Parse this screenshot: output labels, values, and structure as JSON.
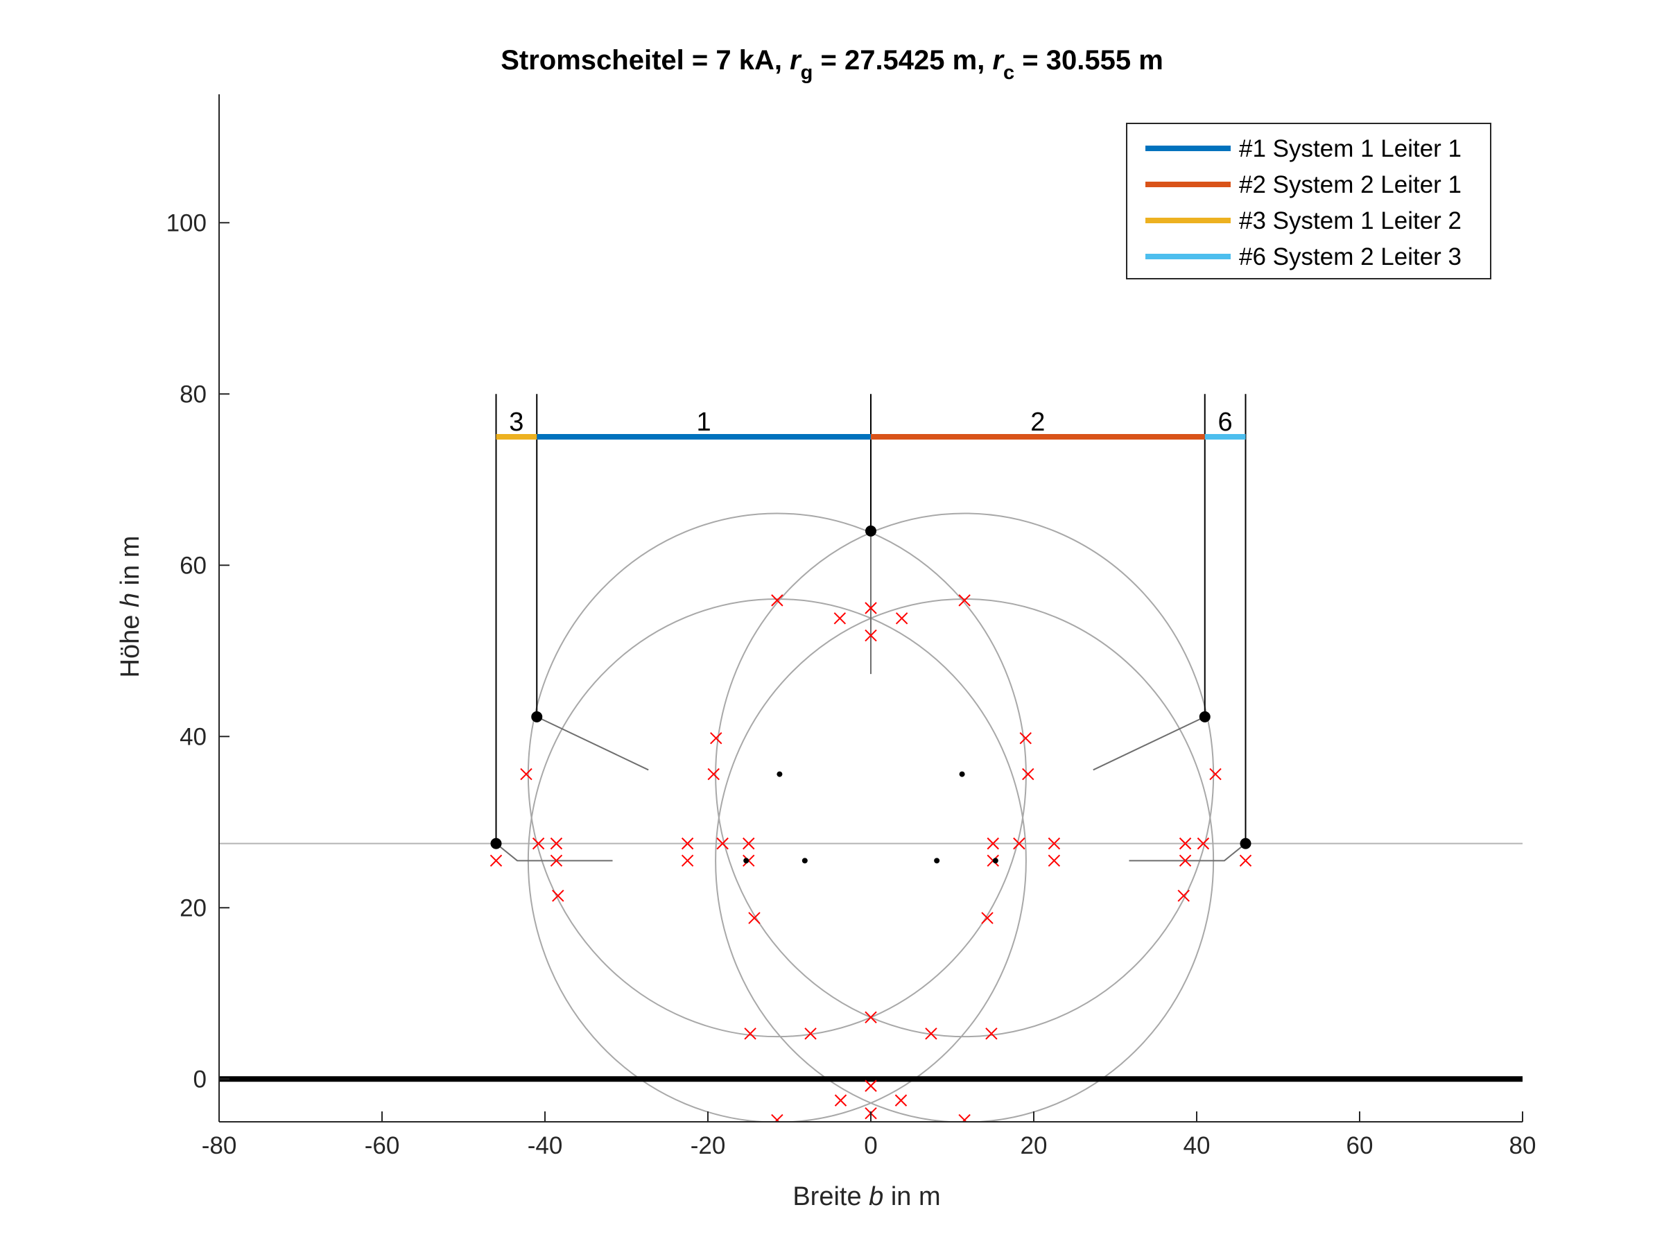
{
  "chart_data": {
    "type": "line",
    "title": {
      "prefix": "Stromscheitel = 7 kA, ",
      "rg_sym": "r",
      "rg_sub": "g",
      "rg_val": " = 27.5425 m, ",
      "rc_sym": "r",
      "rc_sub": "c",
      "rc_val": " = 30.555 m"
    },
    "xlabel": {
      "pre": "Breite ",
      "var": "b",
      "post": " in m"
    },
    "ylabel": {
      "pre": "Höhe ",
      "var": "h",
      "post": " in m"
    },
    "xlim": [
      -80,
      80
    ],
    "ylim": [
      -5,
      115
    ],
    "xticks": [
      "-80",
      "-60",
      "-40",
      "-20",
      "0",
      "20",
      "40",
      "60",
      "80"
    ],
    "yticks": [
      "0",
      "20",
      "40",
      "60",
      "80",
      "100"
    ],
    "legend_position": "top-right",
    "series": [
      {
        "name": "#1 System 1 Leiter 1",
        "color": "#0072BD",
        "label": "1",
        "x": [
          -41.0,
          0.0
        ],
        "y": 75
      },
      {
        "name": "#2 System 2 Leiter 1",
        "color": "#D95319",
        "label": "2",
        "x": [
          0.0,
          41.0
        ],
        "y": 75
      },
      {
        "name": "#3 System 1 Leiter 2",
        "color": "#EDB120",
        "label": "3",
        "x": [
          -46.0,
          -41.0
        ],
        "y": 75
      },
      {
        "name": "#6 System 2 Leiter 3",
        "color": "#4DBEEE",
        "label": "6",
        "x": [
          41.0,
          46.0
        ],
        "y": 75
      }
    ],
    "ground_level": 0,
    "reference_height": 27.5,
    "vertical_lines_x": [
      -46.0,
      -41.0,
      0.0,
      41.0,
      46.0
    ],
    "vertical_lines_top": 80,
    "black_nodes": [
      {
        "x": 0.0,
        "y": 64.0
      },
      {
        "x": -41.0,
        "y": 42.3
      },
      {
        "x": 41.0,
        "y": 42.3
      },
      {
        "x": -46.0,
        "y": 27.5
      },
      {
        "x": 46.0,
        "y": 27.5
      }
    ],
    "small_dots": [
      {
        "x": -11.2,
        "y": 35.6
      },
      {
        "x": 11.2,
        "y": 35.6
      },
      {
        "x": -15.3,
        "y": 25.5
      },
      {
        "x": 15.3,
        "y": 25.5
      },
      {
        "x": -8.1,
        "y": 25.5
      },
      {
        "x": 8.1,
        "y": 25.5
      }
    ],
    "arcs": [
      {
        "cx": -11.5,
        "cy": 25.5,
        "r": 30.555
      },
      {
        "cx": 11.5,
        "cy": 25.5,
        "r": 30.555
      },
      {
        "cx": -11.5,
        "cy": 35.5,
        "r": 30.555
      },
      {
        "cx": 11.5,
        "cy": 35.5,
        "r": 30.555
      }
    ],
    "arc_circle_x_points": [
      {
        "x": -11.5,
        "y": 55.9
      },
      {
        "x": 11.5,
        "y": 55.9
      },
      {
        "x": -3.8,
        "y": 53.8
      },
      {
        "x": 0.0,
        "y": 55.0
      },
      {
        "x": 3.8,
        "y": 53.8
      },
      {
        "x": 0.0,
        "y": 51.8
      },
      {
        "x": -19.0,
        "y": 39.8
      },
      {
        "x": 19.0,
        "y": 39.8
      },
      {
        "x": -19.3,
        "y": 35.6
      },
      {
        "x": 19.3,
        "y": 35.6
      },
      {
        "x": -42.3,
        "y": 35.6
      },
      {
        "x": 42.3,
        "y": 35.6
      },
      {
        "x": -46.0,
        "y": 25.5
      },
      {
        "x": 46.0,
        "y": 25.5
      },
      {
        "x": -40.8,
        "y": 27.5
      },
      {
        "x": 40.8,
        "y": 27.5
      },
      {
        "x": -38.6,
        "y": 27.5
      },
      {
        "x": 38.6,
        "y": 27.5
      },
      {
        "x": -38.6,
        "y": 25.5
      },
      {
        "x": 38.6,
        "y": 25.5
      },
      {
        "x": -38.4,
        "y": 21.4
      },
      {
        "x": 38.4,
        "y": 21.4
      },
      {
        "x": -22.5,
        "y": 27.5
      },
      {
        "x": 22.5,
        "y": 27.5
      },
      {
        "x": -22.5,
        "y": 25.5
      },
      {
        "x": 22.5,
        "y": 25.5
      },
      {
        "x": -18.2,
        "y": 27.5
      },
      {
        "x": 18.2,
        "y": 27.5
      },
      {
        "x": -15.0,
        "y": 27.5
      },
      {
        "x": 15.0,
        "y": 27.5
      },
      {
        "x": -15.0,
        "y": 25.5
      },
      {
        "x": 15.0,
        "y": 25.5
      },
      {
        "x": -14.3,
        "y": 18.8
      },
      {
        "x": 14.3,
        "y": 18.8
      },
      {
        "x": -14.8,
        "y": 5.3
      },
      {
        "x": 14.8,
        "y": 5.3
      },
      {
        "x": -7.4,
        "y": 5.3
      },
      {
        "x": 7.4,
        "y": 5.3
      },
      {
        "x": 0.0,
        "y": 7.2
      },
      {
        "x": 0.0,
        "y": -0.8
      },
      {
        "x": -3.7,
        "y": -2.5
      },
      {
        "x": 3.7,
        "y": -2.5
      },
      {
        "x": 0.0,
        "y": -4.0
      },
      {
        "x": -11.5,
        "y": -4.8
      },
      {
        "x": 11.5,
        "y": -4.8
      }
    ],
    "tower_arms": [
      {
        "x": [
          -41.0,
          -27.3
        ],
        "y": [
          42.3,
          36.1
        ]
      },
      {
        "x": [
          41.0,
          27.3
        ],
        "y": [
          42.3,
          36.1
        ]
      },
      {
        "x": [
          -46.0,
          -43.4,
          -31.7
        ],
        "y": [
          27.5,
          25.5,
          25.5
        ]
      },
      {
        "x": [
          46.0,
          43.4,
          31.7
        ],
        "y": [
          27.5,
          25.5,
          25.5
        ]
      },
      {
        "x": [
          0.0,
          0.0
        ],
        "y": [
          64.0,
          47.3
        ]
      }
    ]
  }
}
